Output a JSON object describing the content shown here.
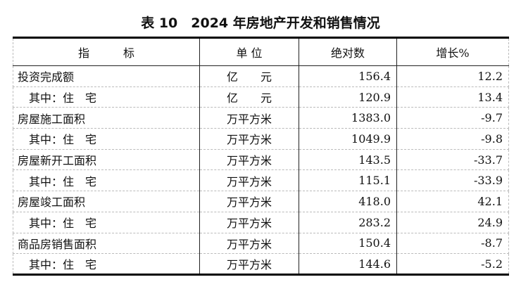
{
  "title": "表 10　2024 年房地产开发和销售情况",
  "headers": [
    "指　　　标",
    "单 位",
    "绝对数",
    "增长%"
  ],
  "rows": [
    {
      "indicator": "投资完成额",
      "unit": "亿　　元",
      "value": "156.4",
      "growth": "12.2"
    },
    {
      "indicator": "　其中：住　宅",
      "unit": "亿　　元",
      "value": "120.9",
      "growth": "13.4"
    },
    {
      "indicator": "房屋施工面积",
      "unit": "万平方米",
      "value": "1383.0",
      "growth": "-9.7"
    },
    {
      "indicator": "　其中：住　宅",
      "unit": "万平方米",
      "value": "1049.9",
      "growth": "-9.8"
    },
    {
      "indicator": "房屋新开工面积",
      "unit": "万平方米",
      "value": "143.5",
      "growth": "-33.7"
    },
    {
      "indicator": "　其中：住　宅",
      "unit": "万平方米",
      "value": "115.1",
      "growth": "-33.9"
    },
    {
      "indicator": "房屋竣工面积",
      "unit": "万平方米",
      "value": "418.0",
      "growth": "42.1"
    },
    {
      "indicator": "　其中：住　宅",
      "unit": "万平方米",
      "value": "283.2",
      "growth": "24.9"
    },
    {
      "indicator": "商品房销售面积",
      "unit": "万平方米",
      "value": "150.4",
      "growth": "-8.7"
    },
    {
      "indicator": "　其中：住　宅",
      "unit": "万平方米",
      "value": "144.6",
      "growth": "-5.2"
    }
  ]
}
